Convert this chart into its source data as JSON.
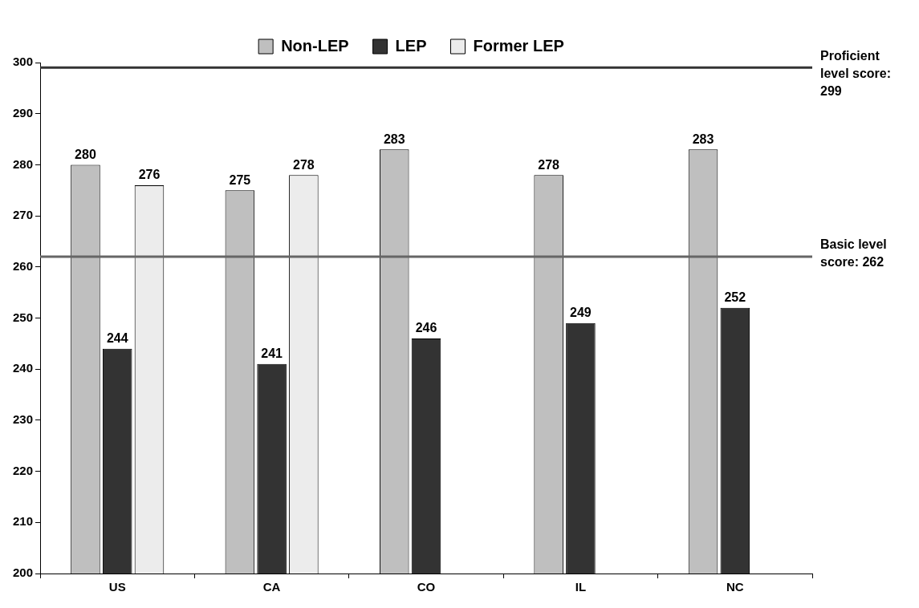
{
  "chart_data": {
    "type": "bar",
    "categories": [
      "US",
      "CA",
      "CO",
      "IL",
      "NC"
    ],
    "series": [
      {
        "name": "Non-LEP",
        "color": "#bfbfbf",
        "values": [
          280,
          275,
          283,
          278,
          283
        ]
      },
      {
        "name": "LEP",
        "color": "#333333",
        "values": [
          244,
          241,
          246,
          249,
          252
        ]
      },
      {
        "name": "Former LEP",
        "color": "#ececec",
        "values": [
          276,
          278,
          null,
          null,
          null
        ]
      }
    ],
    "ylim": [
      200,
      300
    ],
    "yticks": [
      200,
      210,
      220,
      230,
      240,
      250,
      260,
      270,
      280,
      290,
      300
    ],
    "grid": false,
    "legend": "top",
    "data_labels": true,
    "ref_lines": [
      {
        "axis": "y",
        "value": 299,
        "label": "Proficient level score: 299",
        "color": "#333333"
      },
      {
        "axis": "y",
        "value": 262,
        "label": "Basic level score: 262",
        "color": "#666666"
      }
    ]
  }
}
